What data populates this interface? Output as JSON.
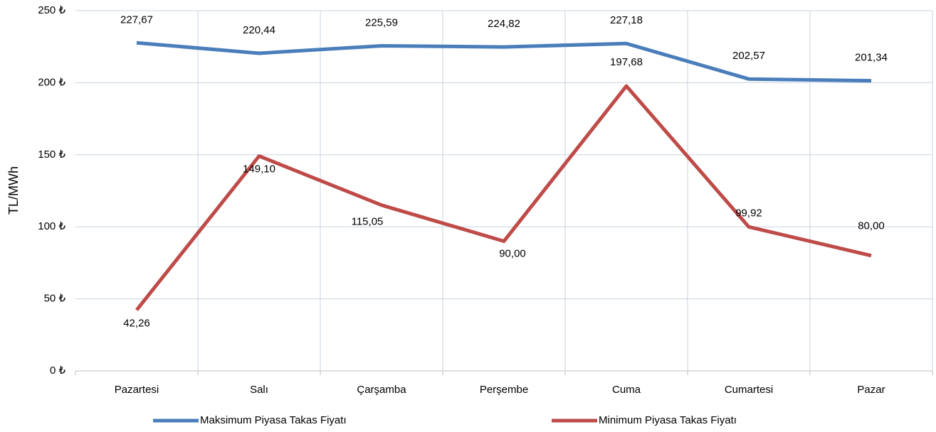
{
  "chart_data": {
    "type": "line",
    "y_axis_label": "TL/MWh",
    "categories": [
      "Pazartesi",
      "Salı",
      "Çarşamba",
      "Perşembe",
      "Cuma",
      "Cumartesi",
      "Pazar"
    ],
    "series": [
      {
        "name": "Maksimum Piyasa Takas Fiyatı",
        "color": "#4a7ebb",
        "values": [
          227.67,
          220.44,
          225.59,
          224.82,
          227.18,
          202.57,
          201.34
        ],
        "value_labels": [
          "227,67",
          "220,44",
          "225,59",
          "224,82",
          "227,18",
          "202,57",
          "201,34"
        ]
      },
      {
        "name": "Minimum Piyasa Takas Fiyatı",
        "color": "#be4b48",
        "values": [
          42.26,
          149.1,
          115.05,
          90.0,
          197.68,
          99.92,
          80.0
        ],
        "value_labels": [
          "42,26",
          "149,10",
          "115,05",
          "90,00",
          "197,68",
          "99,92",
          "80,00"
        ]
      }
    ],
    "ylim": [
      0,
      250
    ],
    "yticks": [
      {
        "value": 0,
        "label": "0 ₺"
      },
      {
        "value": 50,
        "label": "50 ₺"
      },
      {
        "value": 100,
        "label": "100 ₺"
      },
      {
        "value": 150,
        "label": "150 ₺"
      },
      {
        "value": 200,
        "label": "200 ₺"
      },
      {
        "value": 250,
        "label": "250 ₺"
      }
    ],
    "grid": true,
    "legend": "bottom"
  }
}
